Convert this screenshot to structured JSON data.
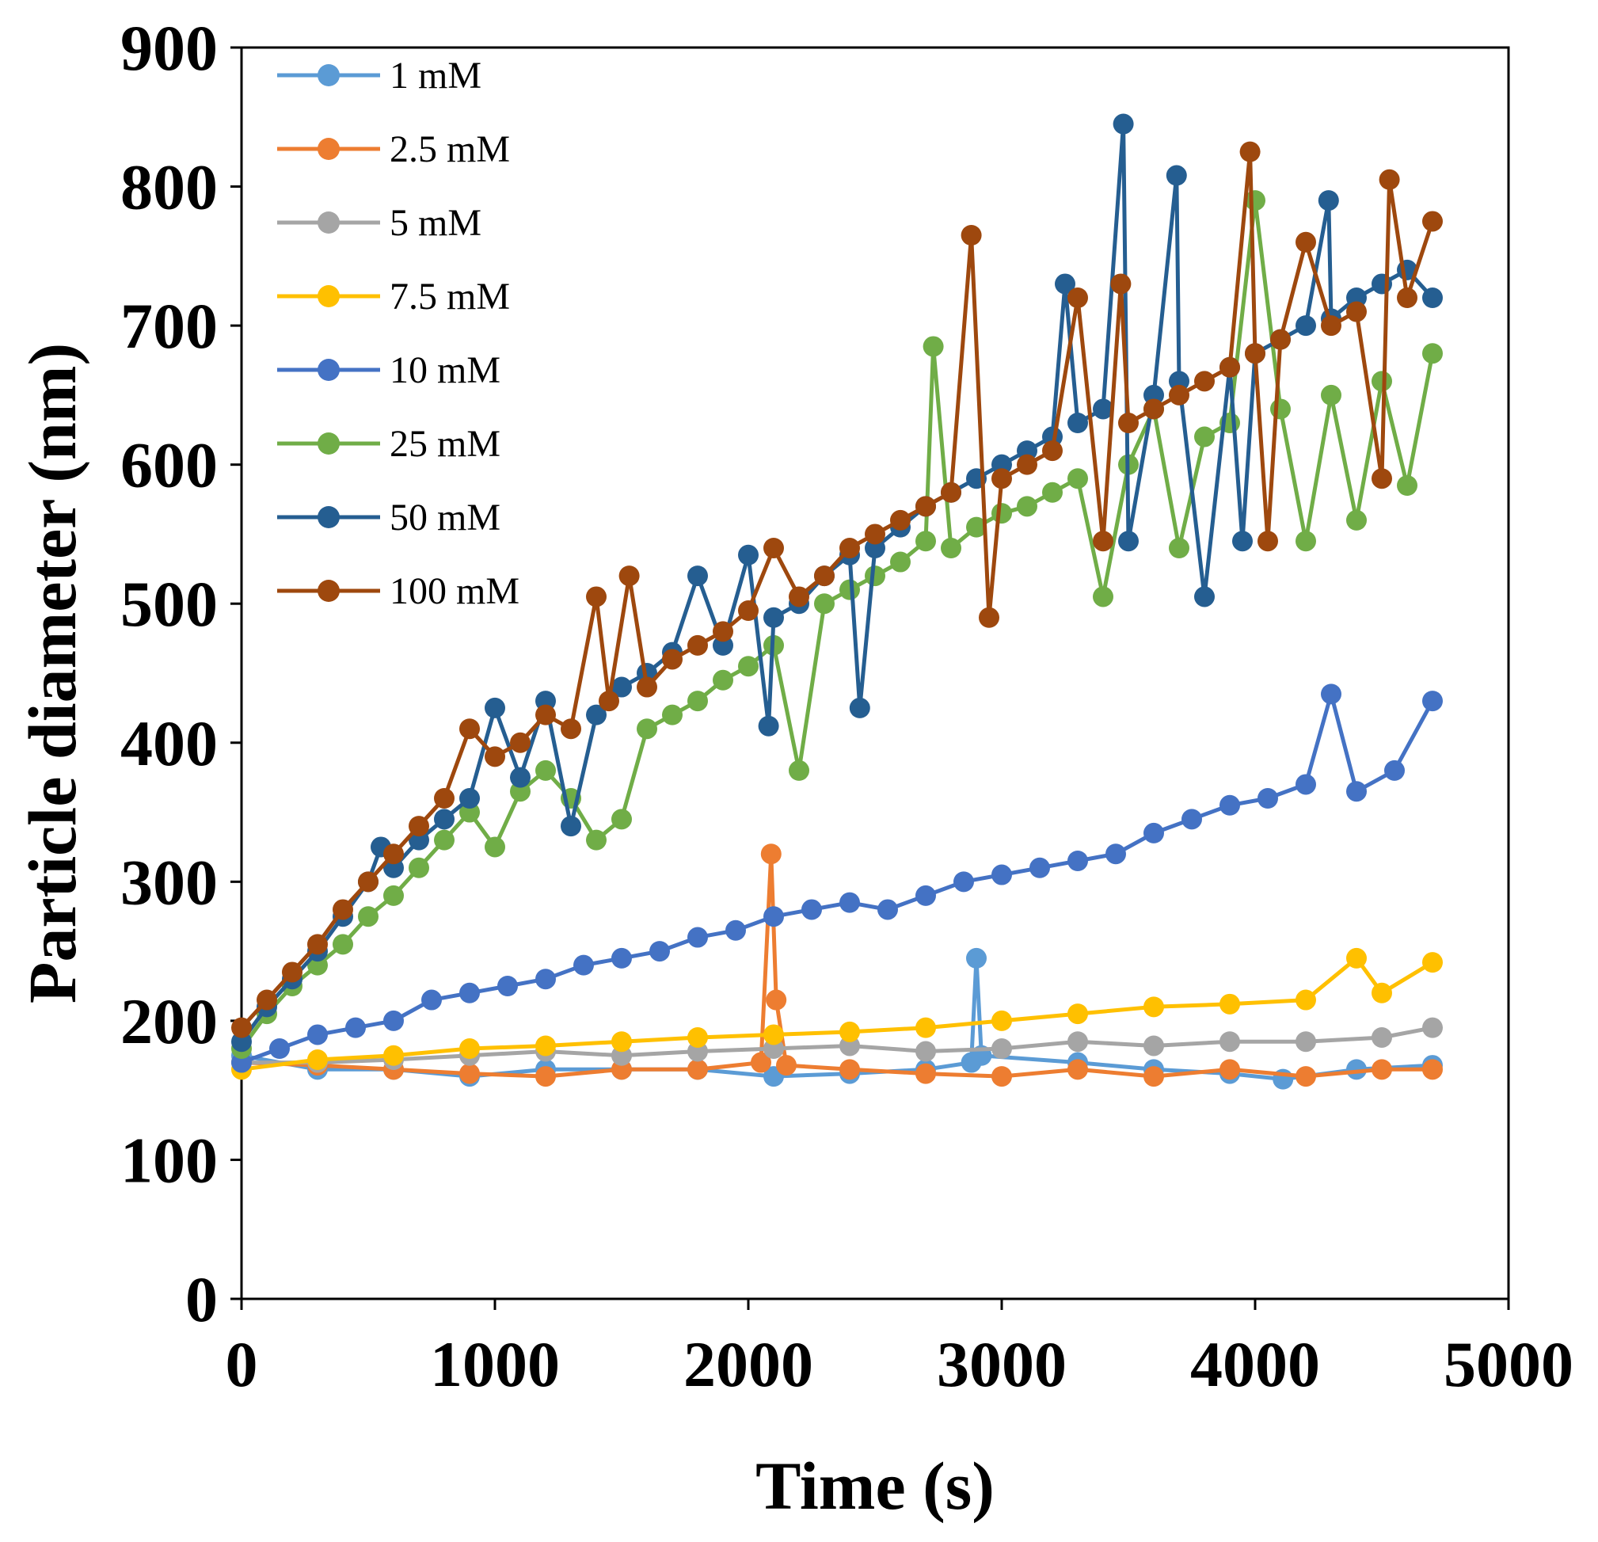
{
  "chart_data": {
    "type": "line",
    "title": "",
    "xlabel": "Time (s)",
    "ylabel": "Particle diameter (nm)",
    "xlim": [
      0,
      5000
    ],
    "ylim": [
      0,
      900
    ],
    "xticks": [
      0,
      1000,
      2000,
      3000,
      4000,
      5000
    ],
    "yticks": [
      0,
      100,
      200,
      300,
      400,
      500,
      600,
      700,
      800,
      900
    ],
    "grid": false,
    "legend_position": "top-left",
    "series": [
      {
        "name": "1 mM",
        "color": "#5B9BD5",
        "points": [
          [
            0,
            175
          ],
          [
            300,
            165
          ],
          [
            600,
            165
          ],
          [
            900,
            160
          ],
          [
            1200,
            165
          ],
          [
            1500,
            165
          ],
          [
            1800,
            165
          ],
          [
            2100,
            160
          ],
          [
            2400,
            162
          ],
          [
            2700,
            165
          ],
          [
            2880,
            170
          ],
          [
            2900,
            245
          ],
          [
            2920,
            175
          ],
          [
            3300,
            170
          ],
          [
            3600,
            165
          ],
          [
            3900,
            162
          ],
          [
            4110,
            158
          ],
          [
            4400,
            165
          ],
          [
            4700,
            168
          ]
        ]
      },
      {
        "name": "2.5 mM",
        "color": "#ED7D31",
        "points": [
          [
            0,
            170
          ],
          [
            300,
            168
          ],
          [
            600,
            165
          ],
          [
            900,
            162
          ],
          [
            1200,
            160
          ],
          [
            1500,
            165
          ],
          [
            1800,
            165
          ],
          [
            2050,
            170
          ],
          [
            2090,
            320
          ],
          [
            2110,
            215
          ],
          [
            2150,
            168
          ],
          [
            2400,
            165
          ],
          [
            2700,
            162
          ],
          [
            3000,
            160
          ],
          [
            3300,
            165
          ],
          [
            3600,
            160
          ],
          [
            3900,
            165
          ],
          [
            4200,
            160
          ],
          [
            4500,
            165
          ],
          [
            4700,
            165
          ]
        ]
      },
      {
        "name": "5 mM",
        "color": "#A5A5A5",
        "points": [
          [
            0,
            170
          ],
          [
            300,
            170
          ],
          [
            600,
            172
          ],
          [
            900,
            175
          ],
          [
            1200,
            178
          ],
          [
            1500,
            175
          ],
          [
            1800,
            178
          ],
          [
            2100,
            180
          ],
          [
            2400,
            182
          ],
          [
            2700,
            178
          ],
          [
            3000,
            180
          ],
          [
            3300,
            185
          ],
          [
            3600,
            182
          ],
          [
            3900,
            185
          ],
          [
            4200,
            185
          ],
          [
            4500,
            188
          ],
          [
            4700,
            195
          ]
        ]
      },
      {
        "name": "7.5 mM",
        "color": "#FFC000",
        "points": [
          [
            0,
            165
          ],
          [
            300,
            172
          ],
          [
            600,
            175
          ],
          [
            900,
            180
          ],
          [
            1200,
            182
          ],
          [
            1500,
            185
          ],
          [
            1800,
            188
          ],
          [
            2100,
            190
          ],
          [
            2400,
            192
          ],
          [
            2700,
            195
          ],
          [
            3000,
            200
          ],
          [
            3300,
            205
          ],
          [
            3600,
            210
          ],
          [
            3900,
            212
          ],
          [
            4200,
            215
          ],
          [
            4400,
            245
          ],
          [
            4500,
            220
          ],
          [
            4700,
            242
          ]
        ]
      },
      {
        "name": "10 mM",
        "color": "#4472C4",
        "points": [
          [
            0,
            170
          ],
          [
            150,
            180
          ],
          [
            300,
            190
          ],
          [
            450,
            195
          ],
          [
            600,
            200
          ],
          [
            750,
            215
          ],
          [
            900,
            220
          ],
          [
            1050,
            225
          ],
          [
            1200,
            230
          ],
          [
            1350,
            240
          ],
          [
            1500,
            245
          ],
          [
            1650,
            250
          ],
          [
            1800,
            260
          ],
          [
            1950,
            265
          ],
          [
            2100,
            275
          ],
          [
            2250,
            280
          ],
          [
            2400,
            285
          ],
          [
            2550,
            280
          ],
          [
            2700,
            290
          ],
          [
            2850,
            300
          ],
          [
            3000,
            305
          ],
          [
            3150,
            310
          ],
          [
            3300,
            315
          ],
          [
            3450,
            320
          ],
          [
            3600,
            335
          ],
          [
            3750,
            345
          ],
          [
            3900,
            355
          ],
          [
            4050,
            360
          ],
          [
            4200,
            370
          ],
          [
            4300,
            435
          ],
          [
            4400,
            365
          ],
          [
            4550,
            380
          ],
          [
            4700,
            430
          ]
        ]
      },
      {
        "name": "25 mM",
        "color": "#70AD47",
        "points": [
          [
            0,
            180
          ],
          [
            100,
            205
          ],
          [
            200,
            225
          ],
          [
            300,
            240
          ],
          [
            400,
            255
          ],
          [
            500,
            275
          ],
          [
            600,
            290
          ],
          [
            700,
            310
          ],
          [
            800,
            330
          ],
          [
            900,
            350
          ],
          [
            1000,
            325
          ],
          [
            1100,
            365
          ],
          [
            1200,
            380
          ],
          [
            1300,
            360
          ],
          [
            1400,
            330
          ],
          [
            1500,
            345
          ],
          [
            1600,
            410
          ],
          [
            1700,
            420
          ],
          [
            1800,
            430
          ],
          [
            1900,
            445
          ],
          [
            2000,
            455
          ],
          [
            2100,
            470
          ],
          [
            2200,
            380
          ],
          [
            2300,
            500
          ],
          [
            2400,
            510
          ],
          [
            2500,
            520
          ],
          [
            2600,
            530
          ],
          [
            2700,
            545
          ],
          [
            2730,
            685
          ],
          [
            2800,
            540
          ],
          [
            2900,
            555
          ],
          [
            3000,
            565
          ],
          [
            3100,
            570
          ],
          [
            3200,
            580
          ],
          [
            3300,
            590
          ],
          [
            3400,
            505
          ],
          [
            3500,
            600
          ],
          [
            3600,
            640
          ],
          [
            3700,
            540
          ],
          [
            3800,
            620
          ],
          [
            3900,
            630
          ],
          [
            4000,
            790
          ],
          [
            4100,
            640
          ],
          [
            4200,
            545
          ],
          [
            4300,
            650
          ],
          [
            4400,
            560
          ],
          [
            4500,
            660
          ],
          [
            4600,
            585
          ],
          [
            4700,
            680
          ]
        ]
      },
      {
        "name": "50 mM",
        "color": "#255E91",
        "points": [
          [
            0,
            185
          ],
          [
            100,
            210
          ],
          [
            200,
            230
          ],
          [
            300,
            250
          ],
          [
            400,
            275
          ],
          [
            500,
            300
          ],
          [
            550,
            325
          ],
          [
            600,
            310
          ],
          [
            700,
            330
          ],
          [
            800,
            345
          ],
          [
            900,
            360
          ],
          [
            1000,
            425
          ],
          [
            1100,
            375
          ],
          [
            1200,
            430
          ],
          [
            1300,
            340
          ],
          [
            1400,
            420
          ],
          [
            1500,
            440
          ],
          [
            1600,
            450
          ],
          [
            1700,
            465
          ],
          [
            1800,
            520
          ],
          [
            1900,
            470
          ],
          [
            2000,
            535
          ],
          [
            2080,
            412
          ],
          [
            2100,
            490
          ],
          [
            2200,
            500
          ],
          [
            2300,
            520
          ],
          [
            2400,
            535
          ],
          [
            2440,
            425
          ],
          [
            2500,
            540
          ],
          [
            2600,
            555
          ],
          [
            2700,
            570
          ],
          [
            2800,
            580
          ],
          [
            2900,
            590
          ],
          [
            3000,
            600
          ],
          [
            3100,
            610
          ],
          [
            3200,
            620
          ],
          [
            3250,
            730
          ],
          [
            3300,
            630
          ],
          [
            3400,
            640
          ],
          [
            3480,
            845
          ],
          [
            3500,
            545
          ],
          [
            3600,
            650
          ],
          [
            3690,
            808
          ],
          [
            3700,
            660
          ],
          [
            3800,
            505
          ],
          [
            3900,
            670
          ],
          [
            3950,
            545
          ],
          [
            4000,
            680
          ],
          [
            4100,
            690
          ],
          [
            4200,
            700
          ],
          [
            4290,
            790
          ],
          [
            4300,
            705
          ],
          [
            4400,
            720
          ],
          [
            4500,
            730
          ],
          [
            4600,
            740
          ],
          [
            4700,
            720
          ]
        ]
      },
      {
        "name": "100 mM",
        "color": "#9E480E",
        "points": [
          [
            0,
            195
          ],
          [
            100,
            215
          ],
          [
            200,
            235
          ],
          [
            300,
            255
          ],
          [
            400,
            280
          ],
          [
            500,
            300
          ],
          [
            600,
            320
          ],
          [
            700,
            340
          ],
          [
            800,
            360
          ],
          [
            900,
            410
          ],
          [
            1000,
            390
          ],
          [
            1100,
            400
          ],
          [
            1200,
            420
          ],
          [
            1300,
            410
          ],
          [
            1400,
            505
          ],
          [
            1450,
            430
          ],
          [
            1530,
            520
          ],
          [
            1600,
            440
          ],
          [
            1700,
            460
          ],
          [
            1800,
            470
          ],
          [
            1900,
            480
          ],
          [
            2000,
            495
          ],
          [
            2100,
            540
          ],
          [
            2200,
            505
          ],
          [
            2300,
            520
          ],
          [
            2400,
            540
          ],
          [
            2500,
            550
          ],
          [
            2600,
            560
          ],
          [
            2700,
            570
          ],
          [
            2800,
            580
          ],
          [
            2880,
            765
          ],
          [
            2950,
            490
          ],
          [
            3000,
            590
          ],
          [
            3100,
            600
          ],
          [
            3200,
            610
          ],
          [
            3300,
            720
          ],
          [
            3400,
            545
          ],
          [
            3470,
            730
          ],
          [
            3500,
            630
          ],
          [
            3600,
            640
          ],
          [
            3700,
            650
          ],
          [
            3800,
            660
          ],
          [
            3900,
            670
          ],
          [
            3980,
            825
          ],
          [
            4000,
            680
          ],
          [
            4050,
            545
          ],
          [
            4100,
            690
          ],
          [
            4200,
            760
          ],
          [
            4300,
            700
          ],
          [
            4400,
            710
          ],
          [
            4500,
            590
          ],
          [
            4530,
            805
          ],
          [
            4600,
            720
          ],
          [
            4700,
            775
          ]
        ]
      }
    ]
  }
}
